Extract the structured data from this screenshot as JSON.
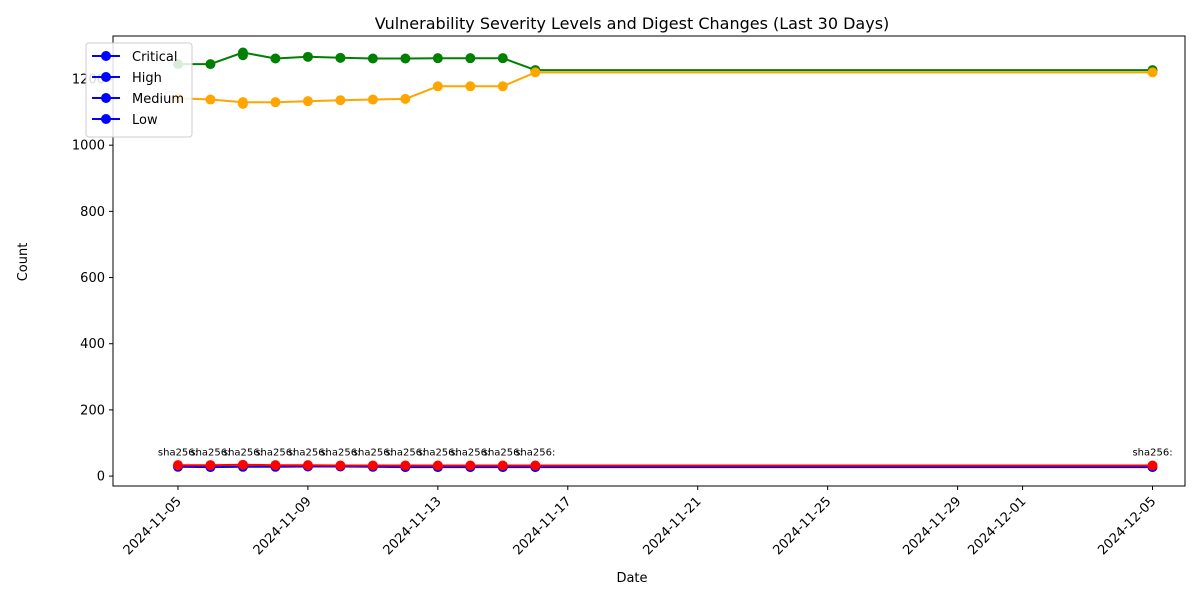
{
  "chart_data": {
    "type": "line",
    "title": "Vulnerability Severity Levels and Digest Changes (Last 30 Days)",
    "xlabel": "Date",
    "ylabel": "Count",
    "x_axis_type": "date",
    "xlim": [
      "2024-11-03",
      "2024-12-06"
    ],
    "ylim": [
      -30,
      1330
    ],
    "x_ticks": [
      "2024-11-05",
      "2024-11-09",
      "2024-11-13",
      "2024-11-17",
      "2024-11-21",
      "2024-11-25",
      "2024-11-29",
      "2024-12-01",
      "2024-12-05"
    ],
    "y_ticks": [
      0,
      200,
      400,
      600,
      800,
      1000,
      1200
    ],
    "grid": false,
    "legend_position": "top-left",
    "legend": [
      "Critical",
      "High",
      "Medium",
      "Low"
    ],
    "legend_color": "#0000ff",
    "x": [
      "2024-11-05",
      "2024-11-06",
      "2024-11-07",
      "2024-11-08",
      "2024-11-09",
      "2024-11-10",
      "2024-11-11",
      "2024-11-12",
      "2024-11-13",
      "2024-11-14",
      "2024-11-15",
      "2024-11-16",
      "2024-12-05"
    ],
    "series": [
      {
        "color": "#008000",
        "values": [
          1245,
          1245,
          1280,
          1262,
          1267,
          1264,
          1262,
          1262,
          1263,
          1263,
          1263,
          1227,
          1227
        ],
        "extra_points": [
          {
            "x": "2024-11-07",
            "y": 1272
          }
        ]
      },
      {
        "color": "#ffa500",
        "values": [
          1142,
          1138,
          1130,
          1130,
          1133,
          1136,
          1138,
          1140,
          1178,
          1178,
          1178,
          1220,
          1220
        ],
        "extra_points": [
          {
            "x": "2024-11-07",
            "y": 1125
          }
        ]
      },
      {
        "color": "#0000ff",
        "values": [
          28,
          27,
          28,
          28,
          29,
          29,
          28,
          27,
          27,
          27,
          27,
          27,
          27
        ]
      },
      {
        "color": "#ff0000",
        "values": [
          33,
          33,
          34,
          33,
          33,
          32,
          32,
          32,
          32,
          32,
          32,
          32,
          32
        ]
      }
    ],
    "annotations": [
      {
        "x": "2024-11-05",
        "y": 75,
        "text": "sha256:"
      },
      {
        "x": "2024-11-06",
        "y": 75,
        "text": "sha256:"
      },
      {
        "x": "2024-11-07",
        "y": 75,
        "text": "sha256:"
      },
      {
        "x": "2024-11-08",
        "y": 75,
        "text": "sha256:"
      },
      {
        "x": "2024-11-09",
        "y": 75,
        "text": "sha256:"
      },
      {
        "x": "2024-11-10",
        "y": 75,
        "text": "sha256:"
      },
      {
        "x": "2024-11-11",
        "y": 75,
        "text": "sha256:"
      },
      {
        "x": "2024-11-12",
        "y": 75,
        "text": "sha256:"
      },
      {
        "x": "2024-11-13",
        "y": 75,
        "text": "sha256:"
      },
      {
        "x": "2024-11-14",
        "y": 75,
        "text": "sha256:"
      },
      {
        "x": "2024-11-15",
        "y": 75,
        "text": "sha256:"
      },
      {
        "x": "2024-11-16",
        "y": 75,
        "text": "sha256:"
      },
      {
        "x": "2024-12-05",
        "y": 75,
        "text": "sha256:"
      }
    ]
  }
}
